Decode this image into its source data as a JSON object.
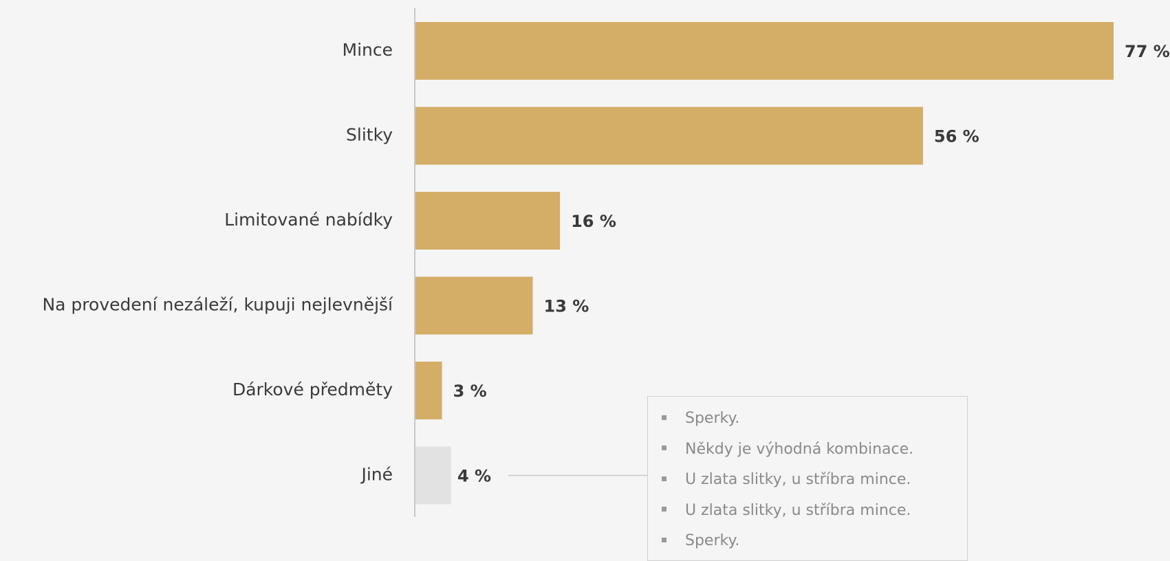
{
  "chart_data": {
    "type": "bar",
    "orientation": "horizontal",
    "categories": [
      "Mince",
      "Slitky",
      "Limitované nabídky",
      "Na provedení nezáleží, kupuji nejlevnější",
      "Dárkové předměty",
      "Jiné"
    ],
    "values": [
      77,
      56,
      16,
      13,
      3,
      4
    ],
    "value_labels": [
      "77 %",
      "56 %",
      "16 %",
      "13 %",
      "3 %",
      "4 %"
    ],
    "xlim": [
      0,
      77
    ],
    "grid": false,
    "colors": {
      "bar": "#d4ad67",
      "other_bar": "#e2e2e2",
      "axis": "#c8c8c8",
      "label": "#3a3a3a",
      "connector": "#c8c8c8"
    },
    "annotation": {
      "attached_to": "Jiné",
      "items": [
        "Sperky.",
        "Někdy je výhodná kombinace.",
        "U zlata slitky, u stříbra mince.",
        "U zlata slitky, u stříbra mince.",
        "Sperky."
      ]
    }
  }
}
